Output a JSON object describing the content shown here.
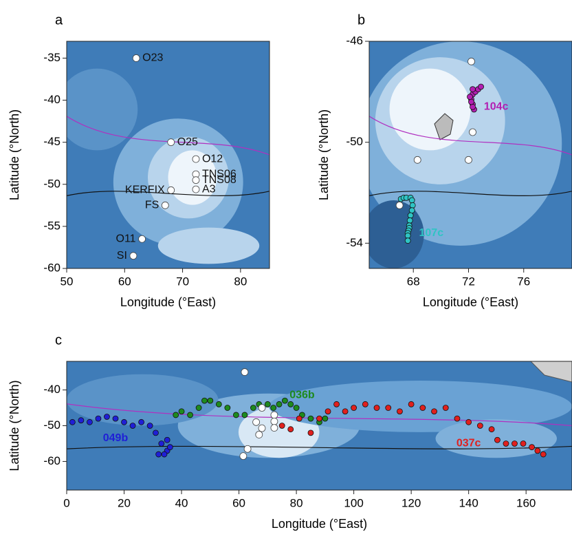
{
  "chart_data": [
    {
      "type": "scatter",
      "panel": "a",
      "xlabel": "Longitude (°East)",
      "ylabel": "Latitude (°North)",
      "xlim": [
        50,
        85
      ],
      "ylim": [
        -60,
        -33
      ],
      "xticks": [
        50,
        60,
        70,
        80
      ],
      "yticks": [
        -35,
        -40,
        -45,
        -50,
        -55,
        -60
      ],
      "series": [
        {
          "color": "#ffffff",
          "x": [
            62,
            68,
            72.3,
            72.3,
            72.3,
            72.3,
            68,
            67,
            63,
            61.5
          ],
          "values": [
            -35,
            -45,
            -47,
            -48.8,
            -49.5,
            -50.6,
            -50.7,
            -52.5,
            -56.5,
            -58.5
          ],
          "point_labels": [
            "O23",
            "O25",
            "O12",
            "TNS06",
            "TNS08",
            "A3",
            "KERFIX",
            "FS",
            "O11",
            "SI"
          ]
        }
      ]
    },
    {
      "type": "scatter",
      "panel": "b",
      "xlabel": "Longitude (°East)",
      "ylabel": "Latitude (°North)",
      "xlim": [
        64.8,
        79.5
      ],
      "ylim": [
        -55,
        -46
      ],
      "xticks": [
        68,
        72,
        76
      ],
      "yticks": [
        -46,
        -50,
        -54
      ],
      "series": [
        {
          "name": "104c",
          "color": "#b21fb2",
          "x": [
            72.4,
            72.3,
            72.2,
            72.3,
            72.5,
            72.7,
            72.9,
            72.3,
            72.2,
            72.1,
            72.3
          ],
          "values": [
            -48.7,
            -48.5,
            -48.3,
            -48.1,
            -48.0,
            -47.9,
            -47.8,
            -48.6,
            -48.4,
            -48.2,
            -47.9
          ]
        },
        {
          "name": "107c",
          "color": "#2fc4c4",
          "x": [
            67.1,
            67.3,
            67.5,
            67.8,
            67.9,
            67.95,
            67.9,
            67.8,
            67.75,
            67.7,
            67.7,
            67.65,
            67.6,
            67.6,
            67.6
          ],
          "values": [
            -52.25,
            -52.2,
            -52.2,
            -52.2,
            -52.3,
            -52.5,
            -52.7,
            -52.9,
            -53.1,
            -53.3,
            -53.4,
            -53.5,
            -53.6,
            -53.7,
            -53.9
          ]
        },
        {
          "color": "#ffffff",
          "x": [
            72.2,
            72.3,
            68.3,
            72,
            67
          ],
          "values": [
            -46.8,
            -49.6,
            -50.7,
            -50.7,
            -52.5
          ]
        }
      ]
    },
    {
      "type": "scatter",
      "panel": "c",
      "xlabel": "Longitude (°East)",
      "ylabel": "Latitude (°North)",
      "xlim": [
        0,
        176
      ],
      "ylim": [
        -68,
        -32
      ],
      "xticks": [
        0,
        20,
        40,
        60,
        80,
        100,
        120,
        140,
        160
      ],
      "yticks": [
        -40,
        -50,
        -60
      ],
      "series": [
        {
          "name": "049b",
          "color": "#1f1fd6",
          "x": [
            2,
            5,
            8,
            11,
            14,
            17,
            20,
            23,
            26,
            29,
            31,
            33,
            35,
            34,
            32,
            36,
            35
          ],
          "values": [
            -49,
            -48.5,
            -49,
            -48,
            -47.5,
            -48,
            -49,
            -50,
            -49,
            -50,
            -52,
            -55,
            -57,
            -58,
            -58,
            -56,
            -54
          ]
        },
        {
          "name": "036b",
          "color": "#1e8a1e",
          "x": [
            38,
            40,
            43,
            46,
            48,
            50,
            53,
            56,
            59,
            62,
            65,
            67,
            70,
            72,
            74,
            76,
            78,
            80,
            82,
            85,
            88,
            90
          ],
          "values": [
            -47,
            -46,
            -47,
            -45,
            -43,
            -43,
            -44,
            -45,
            -47,
            -47,
            -45,
            -44,
            -44,
            -45,
            -44,
            -43,
            -44,
            -45,
            -47,
            -48,
            -49,
            -48
          ]
        },
        {
          "name": "037c",
          "color": "#e0201e",
          "x": [
            75,
            78,
            81,
            85,
            88,
            91,
            94,
            97,
            100,
            104,
            108,
            112,
            116,
            120,
            124,
            128,
            132,
            136,
            140,
            144,
            148,
            150,
            153,
            156,
            159,
            162,
            164,
            166
          ],
          "values": [
            -50,
            -51,
            -48,
            -52,
            -48,
            -46,
            -44,
            -46,
            -45,
            -44,
            -45,
            -45,
            -46,
            -44,
            -45,
            -46,
            -45,
            -48,
            -49,
            -50,
            -51,
            -54,
            -55,
            -55,
            -55,
            -56,
            -57,
            -58
          ]
        },
        {
          "color": "#ffffff",
          "x": [
            62,
            68,
            72.3,
            72.3,
            72.3,
            68,
            67,
            63,
            61.5,
            66
          ],
          "values": [
            -35,
            -45,
            -47,
            -48.8,
            -50.6,
            -50.7,
            -52.5,
            -56.5,
            -58.5,
            -49
          ]
        }
      ]
    }
  ]
}
